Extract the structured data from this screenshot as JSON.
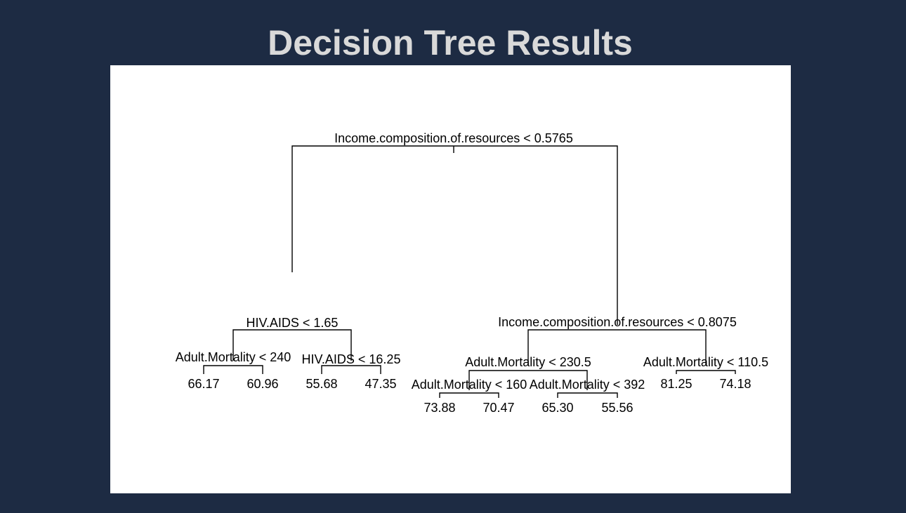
{
  "slide": {
    "title": "Decision Tree Results"
  },
  "tree": {
    "root": {
      "split": "Income.composition.of.resources < 0.5765",
      "left": {
        "split": "HIV.AIDS < 1.65",
        "left": {
          "split": "Adult.Mortality < 240",
          "left": {
            "leaf": "66.17"
          },
          "right": {
            "leaf": "60.96"
          }
        },
        "right": {
          "split": "HIV.AIDS < 16.25",
          "left": {
            "leaf": "55.68"
          },
          "right": {
            "leaf": "47.35"
          }
        }
      },
      "right": {
        "split": "Income.composition.of.resources < 0.8075",
        "left": {
          "split": "Adult.Mortality < 230.5",
          "left": {
            "split": "Adult.Mortality < 160",
            "left": {
              "leaf": "73.88"
            },
            "right": {
              "leaf": "70.47"
            }
          },
          "right": {
            "split": "Adult.Mortality < 392",
            "left": {
              "leaf": "65.30"
            },
            "right": {
              "leaf": "55.56"
            }
          }
        },
        "right": {
          "split": "Adult.Mortality < 110.5",
          "left": {
            "leaf": "81.25"
          },
          "right": {
            "leaf": "74.18"
          }
        }
      }
    }
  }
}
